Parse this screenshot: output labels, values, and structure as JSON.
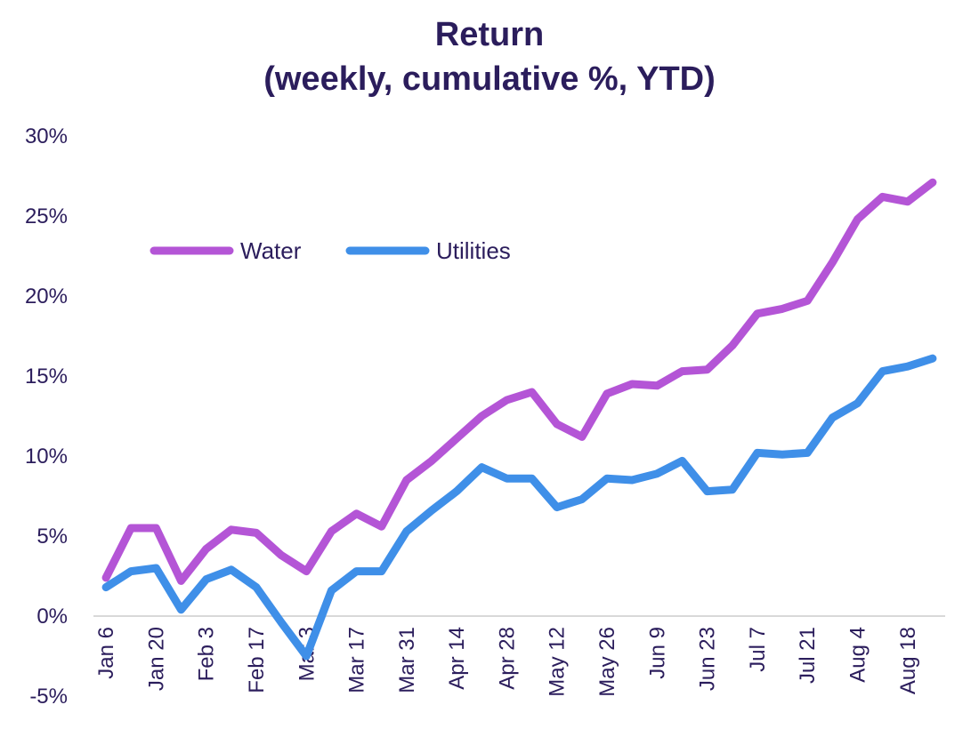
{
  "chart_data": {
    "type": "line",
    "title_line1": "Return",
    "title_line2": "(weekly, cumulative %, YTD)",
    "xlabel": "",
    "ylabel": "",
    "ylim": [
      -5,
      30
    ],
    "yticks": [
      -5,
      0,
      5,
      10,
      15,
      20,
      25,
      30
    ],
    "ytick_labels": [
      "-5%",
      "0%",
      "5%",
      "10%",
      "15%",
      "20%",
      "25%",
      "30%"
    ],
    "x": [
      "Jan 6",
      "Jan 13",
      "Jan 20",
      "Jan 27",
      "Feb 3",
      "Feb 10",
      "Feb 17",
      "Feb 24",
      "Mar 3",
      "Mar 10",
      "Mar 17",
      "Mar 24",
      "Mar 31",
      "Apr 7",
      "Apr 14",
      "Apr 21",
      "Apr 28",
      "May 5",
      "May 12",
      "May 19",
      "May 26",
      "Jun 2",
      "Jun 9",
      "Jun 16",
      "Jun 23",
      "Jun 30",
      "Jul 7",
      "Jul 14",
      "Jul 21",
      "Jul 28",
      "Aug 4",
      "Aug 11",
      "Aug 18",
      "Aug 25"
    ],
    "xtick_labels": [
      "Jan 6",
      "Jan 20",
      "Feb 3",
      "Feb 17",
      "Mar 3",
      "Mar 17",
      "Mar 31",
      "Apr 14",
      "Apr 28",
      "May 12",
      "May 26",
      "Jun 9",
      "Jun 23",
      "Jul 7",
      "Jul 21",
      "Aug 4",
      "Aug 18"
    ],
    "grid": false,
    "legend_position": "top-left",
    "series": [
      {
        "name": "Water",
        "color": "#b455d6",
        "values": [
          2.4,
          5.5,
          5.5,
          2.2,
          4.2,
          5.4,
          5.2,
          3.8,
          2.8,
          5.3,
          6.4,
          5.6,
          8.5,
          9.7,
          11.1,
          12.5,
          13.5,
          14.0,
          12.0,
          11.2,
          13.9,
          14.5,
          14.4,
          15.3,
          15.4,
          16.9,
          18.9,
          19.2,
          19.7,
          22.1,
          24.8,
          26.2,
          25.9,
          27.1
        ]
      },
      {
        "name": "Utilities",
        "color": "#3f8fe8",
        "values": [
          1.8,
          2.8,
          3.0,
          0.4,
          2.3,
          2.9,
          1.8,
          -0.4,
          -2.5,
          1.6,
          2.8,
          2.8,
          5.3,
          6.6,
          7.8,
          9.3,
          8.6,
          8.6,
          6.8,
          7.3,
          8.6,
          8.5,
          8.9,
          9.7,
          7.8,
          7.9,
          10.2,
          10.1,
          10.2,
          12.4,
          13.3,
          15.3,
          15.6,
          16.1
        ]
      }
    ]
  }
}
